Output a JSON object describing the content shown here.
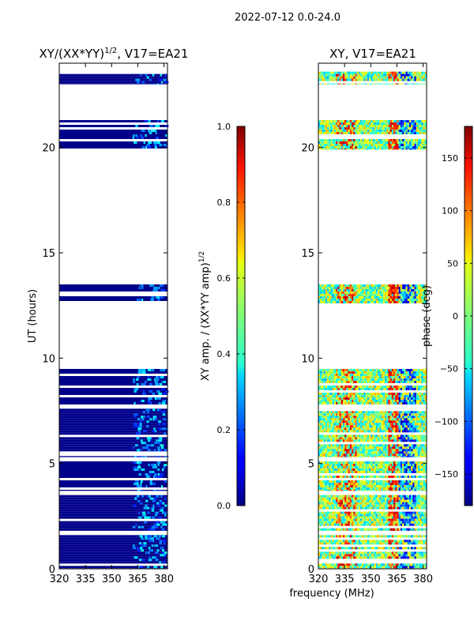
{
  "figure": {
    "suptitle": "2022-07-12 0.0-24.0",
    "xlabel": "frequency (MHz)"
  },
  "colors": {
    "background": "#00008b",
    "blank": "#ffffff"
  },
  "chart_data": [
    {
      "type": "heatmap",
      "name": "amplitude-ratio",
      "title": "XY/(XX*YY)",
      "title_power": "1/2",
      "title_suffix": ", V17=EA21",
      "xlabel": "",
      "ylabel": "UT (hours)",
      "xlim": [
        320,
        382
      ],
      "ylim": [
        0,
        24
      ],
      "xticks": [
        320,
        335,
        350,
        365,
        380
      ],
      "yticks": [
        0,
        5,
        10,
        15,
        20
      ],
      "colorbar": {
        "label": "XY amp. / (XX*YY amp)",
        "label_power": "1/2",
        "range": [
          0.0,
          1.0
        ],
        "ticks": [
          "0.0",
          "0.2",
          "0.4",
          "0.6",
          "0.8",
          "1.0"
        ],
        "colormap": "jet"
      },
      "data_intervals_hours": [
        [
          0.0,
          1.6
        ],
        [
          1.8,
          3.5
        ],
        [
          3.7,
          5.1
        ],
        [
          5.3,
          7.6
        ],
        [
          7.8,
          9.6
        ],
        [
          12.6,
          13.5
        ],
        [
          19.9,
          21.3
        ],
        [
          23.0,
          23.6
        ]
      ]
    },
    {
      "type": "heatmap",
      "name": "phase",
      "title": "XY, V17=EA21",
      "xlabel": "",
      "ylabel": "",
      "xlim": [
        320,
        382
      ],
      "ylim": [
        0,
        24
      ],
      "xticks": [
        320,
        335,
        350,
        365,
        380
      ],
      "yticks": [
        0,
        5,
        10,
        15,
        20
      ],
      "colorbar": {
        "label": "phase (deg)",
        "range": [
          -180,
          180
        ],
        "ticks": [
          "−150",
          "−100",
          "−50",
          "0",
          "50",
          "100",
          "150"
        ],
        "colormap": "jet"
      },
      "data_intervals_hours": [
        [
          0.0,
          1.6
        ],
        [
          1.8,
          3.5
        ],
        [
          3.7,
          5.1
        ],
        [
          5.3,
          7.6
        ],
        [
          7.8,
          9.6
        ],
        [
          12.6,
          13.5
        ],
        [
          19.9,
          21.3
        ],
        [
          23.0,
          23.6
        ]
      ]
    }
  ]
}
